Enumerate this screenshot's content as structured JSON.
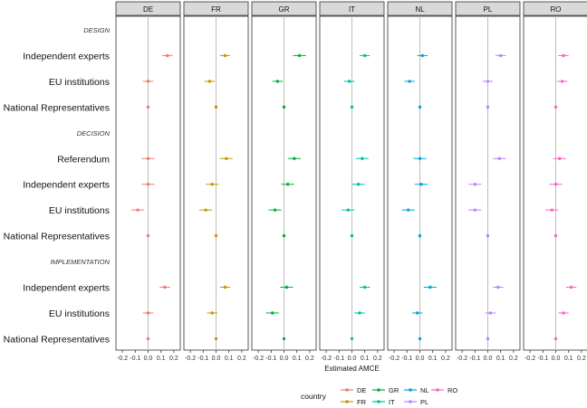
{
  "chart_data": {
    "type": "scatter",
    "subtype": "faceted dot-and-whisker (coefficient plot)",
    "xlabel": "Estimated AMCE",
    "xlim": [
      -0.25,
      0.25
    ],
    "xticks": [
      -0.2,
      -0.1,
      0.0,
      0.1,
      0.2
    ],
    "xtick_labels": [
      "-0.2",
      "-0.1",
      "0.0",
      "0.1",
      "0.2"
    ],
    "reference_line": 0,
    "grid": false,
    "legend": {
      "title": "country",
      "placement": "bottom",
      "entries": [
        "DE",
        "FR",
        "GR",
        "IT",
        "NL",
        "PL",
        "RO"
      ],
      "colors": {
        "DE": "#F8766D",
        "FR": "#C49A00",
        "GR": "#00B03C",
        "IT": "#00BFA3",
        "NL": "#00A5E0",
        "PL": "#B983FF",
        "RO": "#FF61C3"
      }
    },
    "panels": [
      "DE",
      "FR",
      "GR",
      "IT",
      "NL",
      "PL",
      "RO"
    ],
    "rows": [
      {
        "label": "DESIGN",
        "section": true
      },
      {
        "label": "Independent experts"
      },
      {
        "label": "EU institutions"
      },
      {
        "label": "National Representatives"
      },
      {
        "label": "DECISION",
        "section": true
      },
      {
        "label": "Referendum"
      },
      {
        "label": "Independent experts"
      },
      {
        "label": "EU institutions"
      },
      {
        "label": "National Representatives"
      },
      {
        "label": "IMPLEMENTATION",
        "section": true
      },
      {
        "label": "Independent experts"
      },
      {
        "label": "EU institutions"
      },
      {
        "label": "National Representatives"
      }
    ],
    "series": [
      {
        "name": "DE",
        "estimates": [
          null,
          0.15,
          0.0,
          0.0,
          null,
          0.0,
          0.0,
          -0.08,
          0.0,
          null,
          0.13,
          0.0,
          0.0
        ],
        "ci_half": [
          null,
          0.04,
          0.04,
          0.0,
          null,
          0.05,
          0.05,
          0.05,
          0.0,
          null,
          0.04,
          0.04,
          0.0
        ]
      },
      {
        "name": "FR",
        "estimates": [
          null,
          0.07,
          -0.05,
          0.0,
          null,
          0.08,
          -0.03,
          -0.08,
          0.0,
          null,
          0.07,
          -0.03,
          0.0
        ],
        "ci_half": [
          null,
          0.04,
          0.04,
          0.0,
          null,
          0.05,
          0.05,
          0.05,
          0.0,
          null,
          0.04,
          0.04,
          0.0
        ]
      },
      {
        "name": "GR",
        "estimates": [
          null,
          0.12,
          -0.05,
          0.0,
          null,
          0.08,
          0.03,
          -0.07,
          0.0,
          null,
          0.02,
          -0.09,
          0.0
        ],
        "ci_half": [
          null,
          0.05,
          0.04,
          0.0,
          null,
          0.05,
          0.05,
          0.05,
          0.0,
          null,
          0.05,
          0.05,
          0.0
        ]
      },
      {
        "name": "IT",
        "estimates": [
          null,
          0.1,
          -0.02,
          0.0,
          null,
          0.08,
          0.05,
          -0.03,
          0.0,
          null,
          0.1,
          0.06,
          0.0
        ],
        "ci_half": [
          null,
          0.04,
          0.04,
          0.0,
          null,
          0.05,
          0.05,
          0.05,
          0.0,
          null,
          0.04,
          0.04,
          0.0
        ]
      },
      {
        "name": "NL",
        "estimates": [
          null,
          0.02,
          -0.08,
          0.0,
          null,
          0.0,
          0.01,
          -0.09,
          0.0,
          null,
          0.08,
          -0.02,
          0.0
        ],
        "ci_half": [
          null,
          0.04,
          0.04,
          0.0,
          null,
          0.05,
          0.05,
          0.05,
          0.0,
          null,
          0.05,
          0.04,
          0.0
        ]
      },
      {
        "name": "PL",
        "estimates": [
          null,
          0.1,
          0.0,
          0.0,
          null,
          0.09,
          -0.1,
          -0.1,
          0.0,
          null,
          0.08,
          0.02,
          0.0
        ],
        "ci_half": [
          null,
          0.04,
          0.04,
          0.0,
          null,
          0.05,
          0.05,
          0.05,
          0.0,
          null,
          0.04,
          0.04,
          0.0
        ]
      },
      {
        "name": "RO",
        "estimates": [
          null,
          0.06,
          0.05,
          0.0,
          null,
          0.03,
          0.0,
          -0.03,
          0.0,
          null,
          0.12,
          0.06,
          0.0
        ],
        "ci_half": [
          null,
          0.04,
          0.04,
          0.0,
          null,
          0.05,
          0.05,
          0.05,
          0.0,
          null,
          0.04,
          0.04,
          0.0
        ]
      }
    ]
  }
}
